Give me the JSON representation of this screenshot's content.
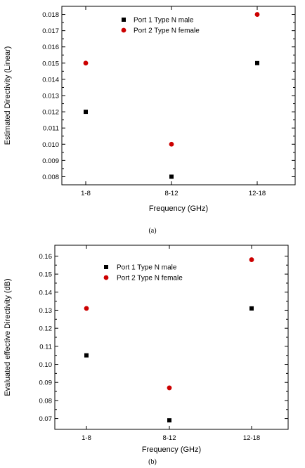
{
  "chart_data": [
    {
      "type": "scatter",
      "categories": [
        "1-8",
        "8-12",
        "12-18"
      ],
      "series": [
        {
          "name": "Port 1 Type N male",
          "marker": "square",
          "color": "#000000",
          "values": [
            0.012,
            0.008,
            0.015
          ]
        },
        {
          "name": "Port 2 Type N female",
          "marker": "circle",
          "color": "#cc0000",
          "values": [
            0.015,
            0.01,
            0.018
          ]
        }
      ],
      "xlabel": "Frequency (GHz)",
      "ylabel": "Estimated Directivity (Linear)",
      "ylim": [
        0.0075,
        0.0185
      ],
      "yticks": [
        "0.008",
        "0.009",
        "0.010",
        "0.011",
        "0.012",
        "0.013",
        "0.014",
        "0.015",
        "0.016",
        "0.017",
        "0.018"
      ],
      "caption": "(a)",
      "legend": "top-center",
      "grid": false
    },
    {
      "type": "scatter",
      "categories": [
        "1-8",
        "8-12",
        "12-18"
      ],
      "series": [
        {
          "name": "Port 1 Type N male",
          "marker": "square",
          "color": "#000000",
          "values": [
            0.105,
            0.069,
            0.131
          ]
        },
        {
          "name": "Port 2 Type N female",
          "marker": "circle",
          "color": "#cc0000",
          "values": [
            0.131,
            0.087,
            0.158
          ]
        }
      ],
      "xlabel": "Frequency (GHz)",
      "ylabel": "Evaluated effective Directivity (dB)",
      "ylim": [
        0.064,
        0.166
      ],
      "yticks": [
        "0.07",
        "0.08",
        "0.09",
        "0.10",
        "0.11",
        "0.12",
        "0.13",
        "0.14",
        "0.15",
        "0.16"
      ],
      "caption": "(b)",
      "legend": "top-left",
      "grid": false
    }
  ]
}
